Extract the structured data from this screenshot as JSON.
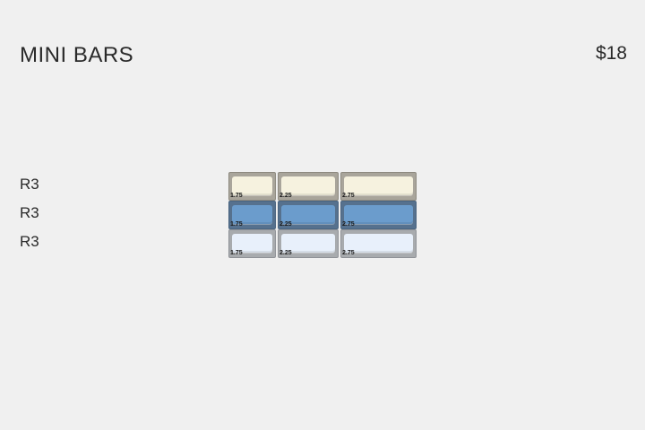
{
  "header": {
    "title": "MINI BARS",
    "price": "$18"
  },
  "rows": [
    {
      "label": "R3",
      "colors": {
        "outer": "#a9a59b",
        "cap": "#f6f2df",
        "edge": "#8e8a80"
      },
      "keys": [
        "1.75",
        "2.25",
        "2.75"
      ]
    },
    {
      "label": "R3",
      "colors": {
        "outer": "#56718e",
        "cap": "#6b9ccc",
        "edge": "#4a6480"
      },
      "keys": [
        "1.75",
        "2.25",
        "2.75"
      ]
    },
    {
      "label": "R3",
      "colors": {
        "outer": "#a8abae",
        "cap": "#e8f0fb",
        "edge": "#909398"
      },
      "keys": [
        "1.75",
        "2.25",
        "2.75"
      ]
    }
  ]
}
